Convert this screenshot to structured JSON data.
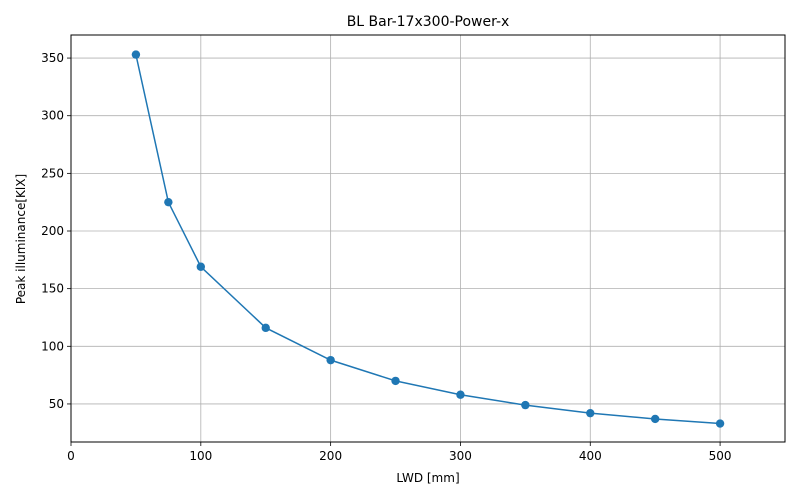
{
  "chart_data": {
    "type": "line",
    "title": "BL Bar-17x300-Power-x",
    "xlabel": "LWD [mm]",
    "ylabel": "Peak illuminance[KlX]",
    "xlim": [
      0,
      550
    ],
    "ylim": [
      17,
      370
    ],
    "xticks": [
      0,
      100,
      200,
      300,
      400,
      500
    ],
    "yticks": [
      50,
      100,
      150,
      200,
      250,
      300,
      350
    ],
    "grid": true,
    "marker": "circle",
    "series": [
      {
        "color": "#1f77b4",
        "x": [
          50,
          75,
          100,
          150,
          200,
          250,
          300,
          350,
          400,
          450,
          500
        ],
        "y": [
          353,
          225,
          169,
          116,
          88,
          70,
          58,
          49,
          42,
          37,
          33
        ]
      }
    ]
  }
}
